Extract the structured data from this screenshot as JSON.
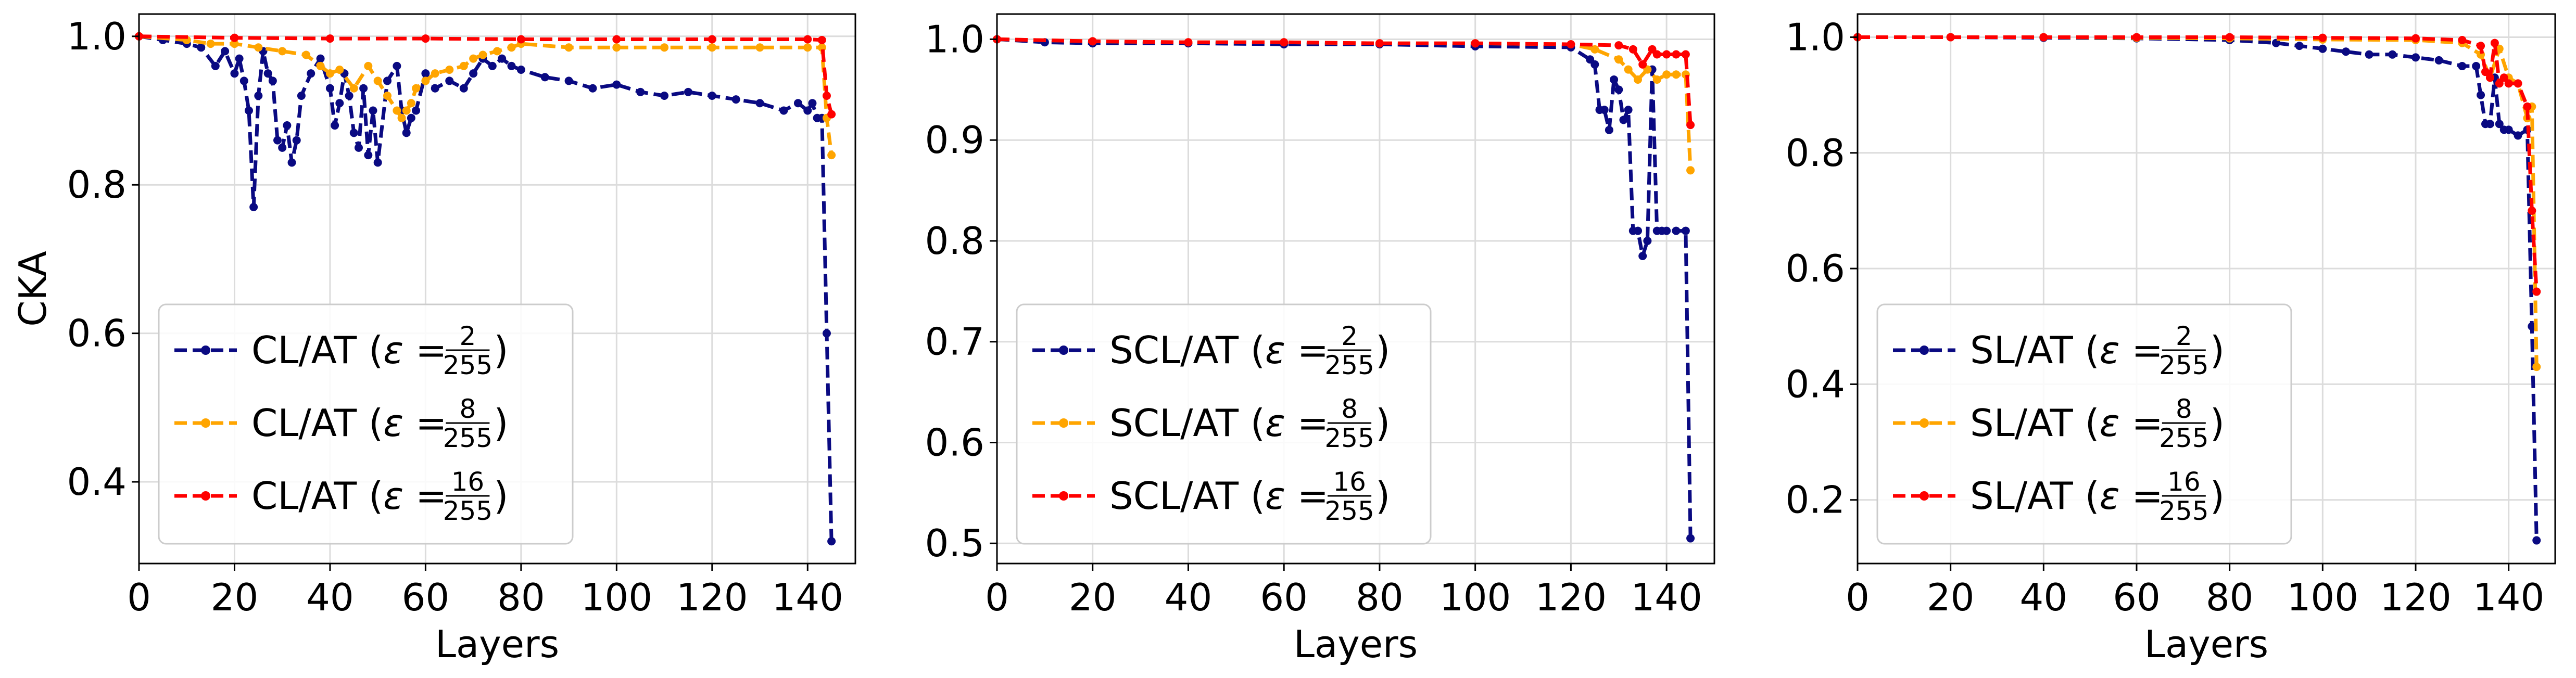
{
  "chart_data": [
    {
      "type": "line",
      "xlabel": "Layers",
      "ylabel": "CKA",
      "xlim": [
        0,
        150
      ],
      "ylim": [
        0.29,
        1.03
      ],
      "xticks": [
        0,
        20,
        40,
        60,
        80,
        100,
        120,
        140
      ],
      "yticks": [
        0.4,
        0.6,
        0.8,
        1.0
      ],
      "grid": true,
      "legend_loc": "lower-left",
      "series": [
        {
          "name": "CL/AT",
          "eps_num": "2",
          "eps_den": "255",
          "color": "#0a0a82",
          "x": [
            0,
            5,
            10,
            13,
            16,
            18,
            20,
            21,
            22,
            23,
            24,
            25,
            26,
            27,
            28,
            29,
            30,
            31,
            32,
            33,
            34,
            36,
            38,
            40,
            41,
            42,
            43,
            44,
            45,
            46,
            47,
            48,
            49,
            50,
            52,
            54,
            55,
            56,
            57,
            58,
            60,
            62,
            65,
            68,
            70,
            72,
            74,
            76,
            78,
            80,
            85,
            90,
            95,
            100,
            105,
            110,
            115,
            120,
            125,
            130,
            135,
            138,
            140,
            141,
            142,
            143,
            144,
            145
          ],
          "values": [
            1.0,
            0.995,
            0.99,
            0.985,
            0.96,
            0.98,
            0.95,
            0.97,
            0.94,
            0.9,
            0.77,
            0.92,
            0.98,
            0.95,
            0.94,
            0.86,
            0.85,
            0.88,
            0.83,
            0.86,
            0.92,
            0.95,
            0.97,
            0.93,
            0.88,
            0.91,
            0.95,
            0.92,
            0.87,
            0.85,
            0.93,
            0.84,
            0.9,
            0.83,
            0.94,
            0.96,
            0.9,
            0.87,
            0.89,
            0.9,
            0.95,
            0.93,
            0.94,
            0.93,
            0.95,
            0.97,
            0.96,
            0.97,
            0.96,
            0.955,
            0.945,
            0.94,
            0.93,
            0.935,
            0.925,
            0.92,
            0.925,
            0.92,
            0.915,
            0.91,
            0.9,
            0.91,
            0.9,
            0.91,
            0.89,
            0.89,
            0.6,
            0.32
          ]
        },
        {
          "name": "CL/AT",
          "eps_num": "8",
          "eps_den": "255",
          "color": "#ffa500",
          "x": [
            0,
            10,
            15,
            20,
            25,
            30,
            35,
            38,
            40,
            42,
            45,
            48,
            50,
            52,
            54,
            55,
            56,
            57,
            58,
            60,
            62,
            65,
            68,
            70,
            72,
            75,
            78,
            80,
            90,
            100,
            110,
            120,
            130,
            140,
            143,
            144,
            145
          ],
          "values": [
            1.0,
            0.995,
            0.99,
            0.99,
            0.985,
            0.98,
            0.975,
            0.96,
            0.95,
            0.955,
            0.93,
            0.96,
            0.94,
            0.92,
            0.9,
            0.89,
            0.9,
            0.91,
            0.93,
            0.94,
            0.95,
            0.955,
            0.96,
            0.97,
            0.975,
            0.98,
            0.985,
            0.99,
            0.985,
            0.985,
            0.985,
            0.985,
            0.985,
            0.985,
            0.985,
            0.89,
            0.84
          ]
        },
        {
          "name": "CL/AT",
          "eps_num": "16",
          "eps_den": "255",
          "color": "#ff0000",
          "x": [
            0,
            20,
            40,
            60,
            80,
            100,
            120,
            140,
            143,
            144,
            145
          ],
          "values": [
            1.0,
            0.998,
            0.997,
            0.997,
            0.996,
            0.996,
            0.996,
            0.996,
            0.995,
            0.92,
            0.895
          ]
        }
      ]
    },
    {
      "type": "line",
      "xlabel": "Layers",
      "ylabel": "",
      "xlim": [
        0,
        150
      ],
      "ylim": [
        0.48,
        1.025
      ],
      "xticks": [
        0,
        20,
        40,
        60,
        80,
        100,
        120,
        140
      ],
      "yticks": [
        0.5,
        0.6,
        0.7,
        0.8,
        0.9,
        1.0
      ],
      "grid": true,
      "legend_loc": "lower-left",
      "series": [
        {
          "name": "SCL/AT",
          "eps_num": "2",
          "eps_den": "255",
          "color": "#0a0a82",
          "x": [
            0,
            10,
            20,
            40,
            60,
            80,
            100,
            120,
            124,
            125,
            126,
            127,
            128,
            129,
            130,
            131,
            132,
            133,
            134,
            135,
            136,
            137,
            138,
            139,
            140,
            142,
            144,
            145
          ],
          "values": [
            1.0,
            0.997,
            0.996,
            0.996,
            0.995,
            0.995,
            0.993,
            0.992,
            0.98,
            0.975,
            0.93,
            0.93,
            0.91,
            0.96,
            0.95,
            0.92,
            0.93,
            0.81,
            0.81,
            0.785,
            0.8,
            0.97,
            0.81,
            0.81,
            0.81,
            0.81,
            0.81,
            0.505
          ]
        },
        {
          "name": "SCL/AT",
          "eps_num": "8",
          "eps_den": "255",
          "color": "#ffa500",
          "x": [
            0,
            20,
            40,
            60,
            80,
            100,
            120,
            125,
            130,
            132,
            134,
            136,
            138,
            140,
            142,
            144,
            145
          ],
          "values": [
            1.0,
            0.998,
            0.997,
            0.997,
            0.996,
            0.996,
            0.995,
            0.99,
            0.98,
            0.97,
            0.96,
            0.97,
            0.96,
            0.965,
            0.965,
            0.965,
            0.87
          ]
        },
        {
          "name": "SCL/AT",
          "eps_num": "16",
          "eps_den": "255",
          "color": "#ff0000",
          "x": [
            0,
            20,
            40,
            60,
            80,
            100,
            120,
            130,
            133,
            135,
            137,
            138,
            140,
            142,
            144,
            145
          ],
          "values": [
            1.0,
            0.998,
            0.997,
            0.997,
            0.996,
            0.996,
            0.995,
            0.994,
            0.99,
            0.975,
            0.99,
            0.985,
            0.985,
            0.985,
            0.985,
            0.915
          ]
        }
      ]
    },
    {
      "type": "line",
      "xlabel": "Layers",
      "ylabel": "",
      "xlim": [
        0,
        150
      ],
      "ylim": [
        0.09,
        1.04
      ],
      "xticks": [
        0,
        20,
        40,
        60,
        80,
        100,
        120,
        140
      ],
      "yticks": [
        0.2,
        0.4,
        0.6,
        0.8,
        1.0
      ],
      "grid": true,
      "legend_loc": "lower-left",
      "series": [
        {
          "name": "SL/AT",
          "eps_num": "2",
          "eps_den": "255",
          "color": "#0a0a82",
          "x": [
            0,
            20,
            40,
            60,
            80,
            90,
            95,
            100,
            105,
            110,
            115,
            120,
            125,
            130,
            133,
            134,
            135,
            136,
            137,
            138,
            139,
            140,
            142,
            144,
            145,
            146
          ],
          "values": [
            1.0,
            1.0,
            0.999,
            0.998,
            0.995,
            0.99,
            0.985,
            0.98,
            0.975,
            0.97,
            0.97,
            0.965,
            0.96,
            0.95,
            0.95,
            0.9,
            0.85,
            0.85,
            0.93,
            0.85,
            0.84,
            0.84,
            0.83,
            0.84,
            0.5,
            0.13
          ]
        },
        {
          "name": "SL/AT",
          "eps_num": "8",
          "eps_den": "255",
          "color": "#ffa500",
          "x": [
            0,
            20,
            40,
            60,
            80,
            100,
            120,
            130,
            134,
            136,
            138,
            140,
            142,
            144,
            145,
            146
          ],
          "values": [
            1.0,
            1.0,
            1.0,
            0.999,
            0.998,
            0.996,
            0.995,
            0.99,
            0.97,
            0.93,
            0.98,
            0.93,
            0.92,
            0.86,
            0.88,
            0.43
          ]
        },
        {
          "name": "SL/AT",
          "eps_num": "16",
          "eps_den": "255",
          "color": "#ff0000",
          "x": [
            0,
            20,
            40,
            60,
            80,
            100,
            120,
            130,
            134,
            135,
            136,
            137,
            138,
            139,
            140,
            142,
            144,
            145,
            146
          ],
          "values": [
            1.0,
            1.0,
            1.0,
            1.0,
            1.0,
            0.999,
            0.998,
            0.995,
            0.985,
            0.94,
            0.93,
            0.99,
            0.92,
            0.93,
            0.92,
            0.92,
            0.88,
            0.7,
            0.56
          ]
        }
      ]
    }
  ]
}
